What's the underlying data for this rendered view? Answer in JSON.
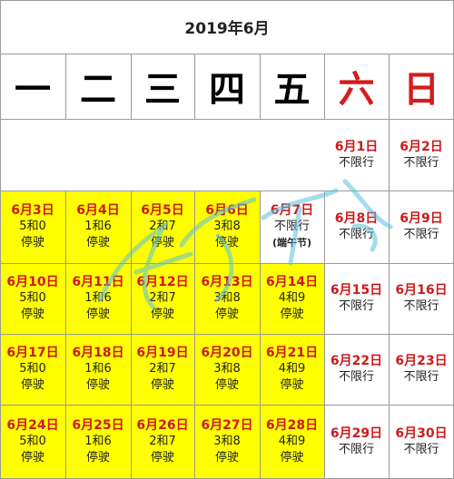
{
  "title": "2019年6月",
  "weekdays": [
    "一",
    "二",
    "三",
    "四",
    "五",
    "六",
    "日"
  ],
  "colors": {
    "highlight": "#ffff00",
    "date_red": "#cc1a1a",
    "weekend_red": "#d41c1c",
    "grid": "#9a9a9a",
    "watermark": "#5bc0de"
  },
  "weeks": [
    [
      null,
      null,
      null,
      null,
      null,
      {
        "date": "6月1日",
        "status": "不限行"
      },
      {
        "date": "6月2日",
        "status": "不限行"
      }
    ],
    [
      {
        "date": "6月3日",
        "rule": "5和0",
        "status": "停驶",
        "highlight": true
      },
      {
        "date": "6月4日",
        "rule": "1和6",
        "status": "停驶",
        "highlight": true
      },
      {
        "date": "6月5日",
        "rule": "2和7",
        "status": "停驶",
        "highlight": true
      },
      {
        "date": "6月6日",
        "rule": "3和8",
        "status": "停驶",
        "highlight": true
      },
      {
        "date": "6月7日",
        "status": "不限行",
        "note": "(端午节)"
      },
      {
        "date": "6月8日",
        "status": "不限行"
      },
      {
        "date": "6月9日",
        "status": "不限行"
      }
    ],
    [
      {
        "date": "6月10日",
        "rule": "5和0",
        "status": "停驶",
        "highlight": true
      },
      {
        "date": "6月11日",
        "rule": "1和6",
        "status": "停驶",
        "highlight": true
      },
      {
        "date": "6月12日",
        "rule": "2和7",
        "status": "停驶",
        "highlight": true
      },
      {
        "date": "6月13日",
        "rule": "3和8",
        "status": "停驶",
        "highlight": true
      },
      {
        "date": "6月14日",
        "rule": "4和9",
        "status": "停驶",
        "highlight": true
      },
      {
        "date": "6月15日",
        "status": "不限行"
      },
      {
        "date": "6月16日",
        "status": "不限行"
      }
    ],
    [
      {
        "date": "6月17日",
        "rule": "5和0",
        "status": "停驶",
        "highlight": true
      },
      {
        "date": "6月18日",
        "rule": "1和6",
        "status": "停驶",
        "highlight": true
      },
      {
        "date": "6月19日",
        "rule": "2和7",
        "status": "停驶",
        "highlight": true
      },
      {
        "date": "6月20日",
        "rule": "3和8",
        "status": "停驶",
        "highlight": true
      },
      {
        "date": "6月21日",
        "rule": "4和9",
        "status": "停驶",
        "highlight": true
      },
      {
        "date": "6月22日",
        "status": "不限行"
      },
      {
        "date": "6月23日",
        "status": "不限行"
      }
    ],
    [
      {
        "date": "6月24日",
        "rule": "5和0",
        "status": "停驶",
        "highlight": true
      },
      {
        "date": "6月25日",
        "rule": "1和6",
        "status": "停驶",
        "highlight": true
      },
      {
        "date": "6月26日",
        "rule": "2和7",
        "status": "停驶",
        "highlight": true
      },
      {
        "date": "6月27日",
        "rule": "3和8",
        "status": "停驶",
        "highlight": true
      },
      {
        "date": "6月28日",
        "rule": "4和9",
        "status": "停驶",
        "highlight": true
      },
      {
        "date": "6月29日",
        "status": "不限行"
      },
      {
        "date": "6月30日",
        "status": "不限行"
      }
    ]
  ]
}
